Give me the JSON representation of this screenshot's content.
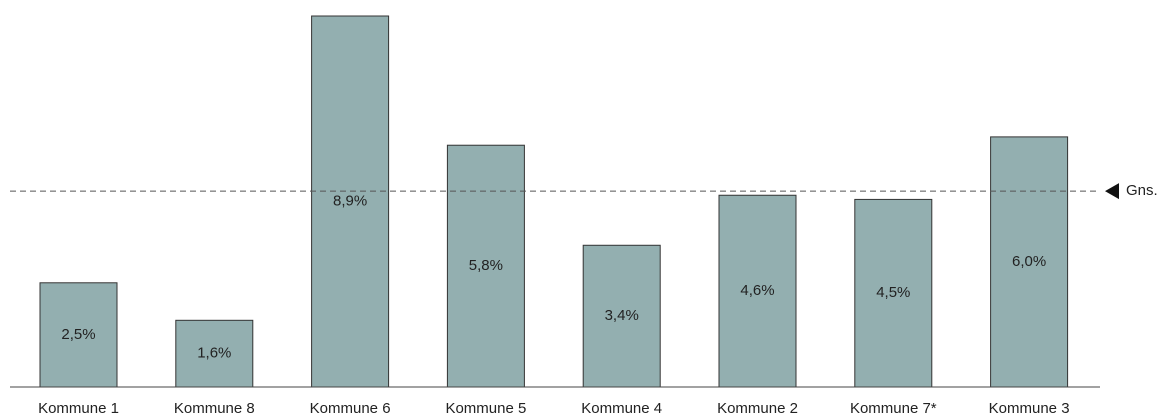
{
  "chart_data": {
    "type": "bar",
    "categories": [
      "Kommune 1",
      "Kommune 8",
      "Kommune 6",
      "Kommune 5",
      "Kommune 4",
      "Kommune 2",
      "Kommune 7*",
      "Kommune 3"
    ],
    "values": [
      2.5,
      1.6,
      8.9,
      5.8,
      3.4,
      4.6,
      4.5,
      6.0
    ],
    "value_labels": [
      "2,5%",
      "1,6%",
      "8,9%",
      "5,8%",
      "3,4%",
      "4,6%",
      "4,5%",
      "6,0%"
    ],
    "color": "#93afb0",
    "average": {
      "value": 4.7,
      "label": "Gns."
    }
  }
}
